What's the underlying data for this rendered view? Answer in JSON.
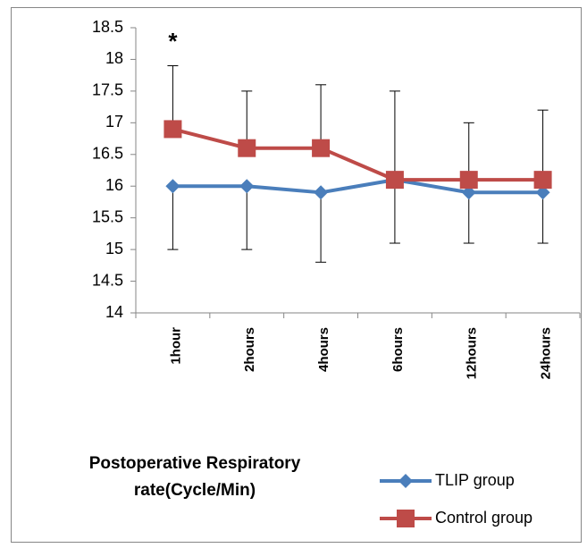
{
  "chart_data": {
    "type": "line",
    "title": "Postoperative Respiratory rate(Cycle/Min)",
    "categories": [
      "1hour",
      "2hours",
      "4hours",
      "6hours",
      "12hours",
      "24hours"
    ],
    "series": [
      {
        "name": "TLIP group",
        "color": "#4a7ebb",
        "marker": "diamond",
        "values": [
          16,
          16,
          15.9,
          16.1,
          15.9,
          15.9
        ],
        "errors": [
          1.0,
          1.0,
          1.1,
          1.0,
          0.8,
          0.8
        ],
        "error_direction": "down"
      },
      {
        "name": "Control group",
        "color": "#be4b48",
        "marker": "square",
        "values": [
          16.9,
          16.6,
          16.6,
          16.1,
          16.1,
          16.1
        ],
        "errors": [
          1.0,
          0.9,
          1.0,
          1.4,
          0.9,
          1.1
        ],
        "error_direction": "up"
      }
    ],
    "annotations": [
      {
        "text": "*",
        "x": "1hour"
      }
    ],
    "ylim": [
      14,
      18.5
    ],
    "yticks": [
      14,
      14.5,
      15,
      15.5,
      16,
      16.5,
      17,
      17.5,
      18,
      18.5
    ],
    "grid": false,
    "legend": "bottom-right"
  }
}
